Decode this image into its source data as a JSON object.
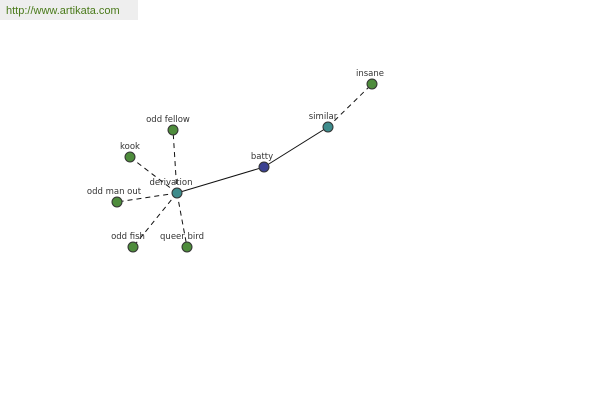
{
  "header": {
    "url": "http://www.artikata.com"
  },
  "nodes": [
    {
      "label": "batty"
    },
    {
      "label": "similar"
    },
    {
      "label": "insane"
    },
    {
      "label": "derivation"
    },
    {
      "label": "odd fellow"
    },
    {
      "label": "kook"
    },
    {
      "label": "odd man out"
    },
    {
      "label": "odd fish"
    },
    {
      "label": "queer bird"
    }
  ]
}
